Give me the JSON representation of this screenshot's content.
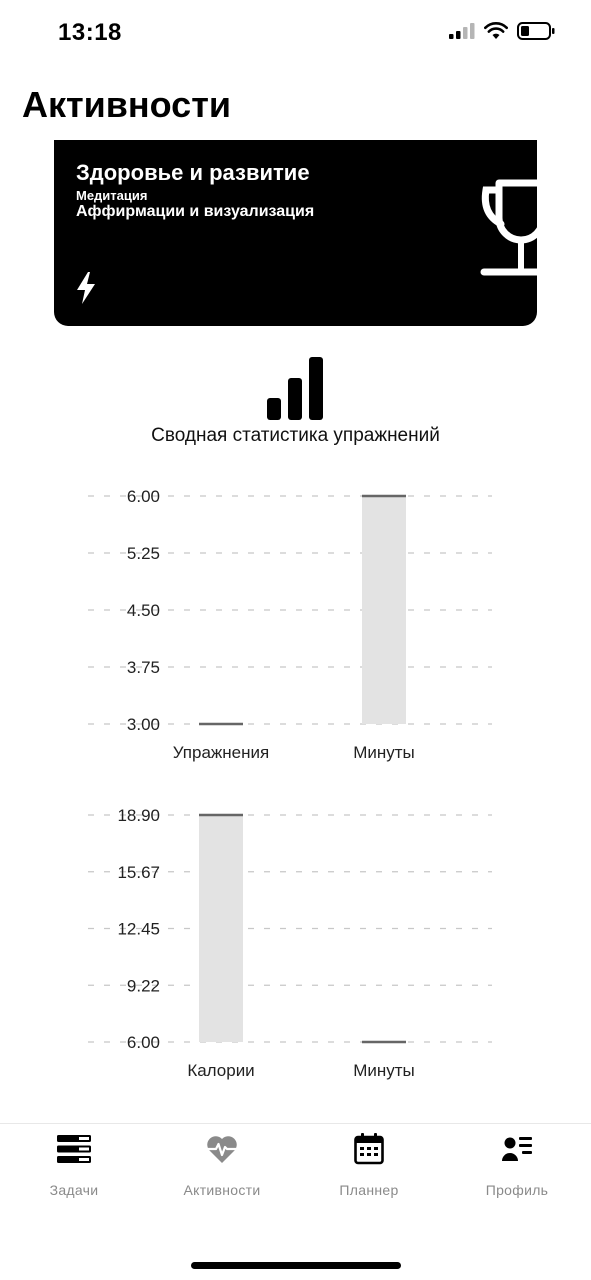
{
  "status_bar": {
    "time": "13:18"
  },
  "page_title": "Активности",
  "card": {
    "title": "Здоровье и развитие",
    "category": "Медитация",
    "activity": "Аффирмации и визуализация"
  },
  "summary_title": "Сводная статистика упражнений",
  "chart_data": [
    {
      "type": "bar",
      "categories": [
        "Упражнения",
        "Минуты"
      ],
      "values": [
        3.0,
        6.0
      ],
      "yticks": [
        "6.00",
        "5.25",
        "4.50",
        "3.75",
        "3.00"
      ],
      "ylim": [
        3.0,
        6.0
      ],
      "grid": true
    },
    {
      "type": "bar",
      "categories": [
        "Калории",
        "Минуты"
      ],
      "values": [
        18.9,
        6.0
      ],
      "yticks": [
        "18.90",
        "15.67",
        "12.45",
        "9.22",
        "6.00"
      ],
      "ylim": [
        6.0,
        18.9
      ],
      "grid": true
    }
  ],
  "tabs": [
    {
      "label": "Задачи",
      "icon": "tasks-icon"
    },
    {
      "label": "Активности",
      "icon": "heart-pulse-icon"
    },
    {
      "label": "Планнер",
      "icon": "calendar-icon"
    },
    {
      "label": "Профиль",
      "icon": "profile-icon"
    }
  ],
  "colors": {
    "bar_fill": "#e3e3e3",
    "bar_top": "#666666",
    "grid": "#c8c8c8",
    "tab_label": "#8a8a8a"
  }
}
